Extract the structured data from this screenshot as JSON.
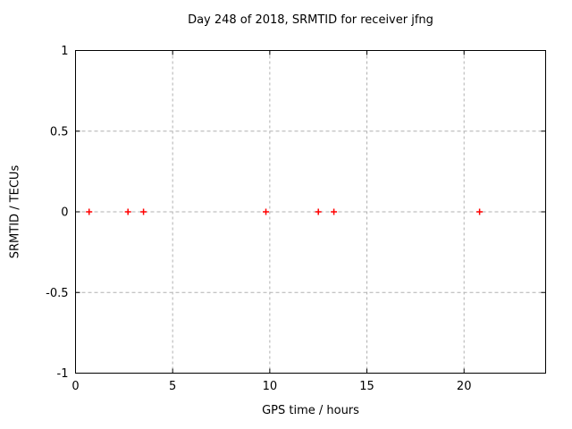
{
  "window": {
    "background": "#ffffff"
  },
  "chart_data": {
    "type": "scatter",
    "title": "Day 248 of 2018, SRMTID for receiver jfng",
    "xlabel": "GPS time / hours",
    "ylabel": "SRMTID / TECUs",
    "xlim": [
      0,
      24.2
    ],
    "ylim": [
      -1,
      1
    ],
    "xticks": [
      0,
      5,
      10,
      15,
      20
    ],
    "xtick_labels": [
      "0",
      "5",
      "10",
      "15",
      "20"
    ],
    "yticks": [
      -1,
      -0.5,
      0,
      0.5,
      1
    ],
    "ytick_labels": [
      "-1",
      "-0.5",
      "0",
      "0.5",
      "1"
    ],
    "grid": true,
    "grid_style": "dashed",
    "legend": "none",
    "marker": {
      "shape": "plus",
      "color": "#ff0000",
      "size": 7
    },
    "colors": {
      "axis": "#000000",
      "grid": "#b0b0b0",
      "text": "#000000",
      "background": "#ffffff"
    },
    "series": [
      {
        "name": "SRMTID",
        "points": [
          {
            "x": 0.7,
            "y": 0
          },
          {
            "x": 2.7,
            "y": 0
          },
          {
            "x": 3.5,
            "y": 0
          },
          {
            "x": 9.8,
            "y": 0
          },
          {
            "x": 12.5,
            "y": 0
          },
          {
            "x": 13.3,
            "y": 0
          },
          {
            "x": 20.8,
            "y": 0
          }
        ]
      }
    ]
  }
}
